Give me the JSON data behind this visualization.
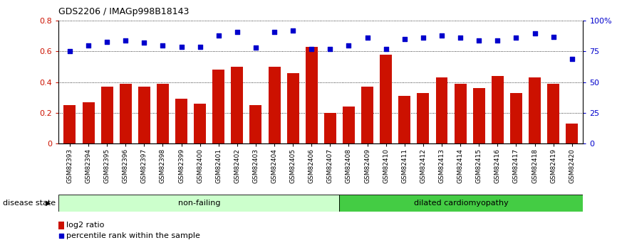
{
  "title": "GDS2206 / IMAGp998B18143",
  "categories": [
    "GSM82393",
    "GSM82394",
    "GSM82395",
    "GSM82396",
    "GSM82397",
    "GSM82398",
    "GSM82399",
    "GSM82400",
    "GSM82401",
    "GSM82402",
    "GSM82403",
    "GSM82404",
    "GSM82405",
    "GSM82406",
    "GSM82407",
    "GSM82408",
    "GSM82409",
    "GSM82410",
    "GSM82411",
    "GSM82412",
    "GSM82413",
    "GSM82414",
    "GSM82415",
    "GSM82416",
    "GSM82417",
    "GSM82418",
    "GSM82419",
    "GSM82420"
  ],
  "log2_ratio": [
    0.25,
    0.27,
    0.37,
    0.39,
    0.37,
    0.39,
    0.29,
    0.26,
    0.48,
    0.5,
    0.25,
    0.5,
    0.46,
    0.63,
    0.2,
    0.24,
    0.37,
    0.58,
    0.31,
    0.33,
    0.43,
    0.39,
    0.36,
    0.44,
    0.33,
    0.43,
    0.39,
    0.13
  ],
  "percentile": [
    0.75,
    0.8,
    0.83,
    0.84,
    0.82,
    0.8,
    0.79,
    0.79,
    0.88,
    0.91,
    0.78,
    0.91,
    0.92,
    0.77,
    0.77,
    0.8,
    0.86,
    0.77,
    0.85,
    0.86,
    0.88,
    0.86,
    0.84,
    0.84,
    0.86,
    0.9,
    0.87,
    0.69
  ],
  "non_failing_count": 15,
  "bar_color": "#CC1100",
  "dot_color": "#0000CC",
  "bg_color": "#FFFFFF",
  "nonfailing_bg": "#CCFFCC",
  "dcm_bg": "#44CC44",
  "label_nonfailing": "non-failing",
  "label_dcm": "dilated cardiomyopathy",
  "disease_state_label": "disease state",
  "legend_log2": "log2 ratio",
  "legend_pct": "percentile rank within the sample",
  "ylim_left": [
    0,
    0.8
  ],
  "ylim_right": [
    0,
    1.0
  ],
  "yticks_left": [
    0,
    0.2,
    0.4,
    0.6,
    0.8
  ],
  "yticks_right": [
    0,
    0.25,
    0.5,
    0.75,
    1.0
  ],
  "ytick_labels_left": [
    "0",
    "0.2",
    "0.4",
    "0.6",
    "0.8"
  ],
  "ytick_labels_right": [
    "0",
    "25",
    "50",
    "75",
    "100%"
  ]
}
